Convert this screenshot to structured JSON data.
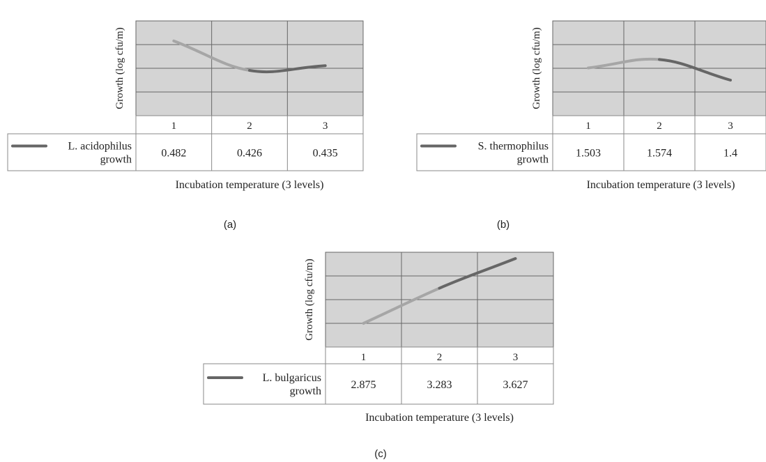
{
  "colors": {
    "plot_bg": "#d4d4d4",
    "grid": "#666666",
    "line_light": "#a6a6a6",
    "line_dark": "#666666",
    "cell_border": "#888888",
    "text": "#222222"
  },
  "chart_data": [
    {
      "type": "line",
      "panel_label": "(a)",
      "ylabel": "Growth (log cfu/m)",
      "xlabel": "Incubation temperature (3 levels)",
      "categories": [
        "1",
        "2",
        "3"
      ],
      "series": [
        {
          "name_line1": "L. acidophilus",
          "name_line2": "growth",
          "values": [
            0.482,
            0.426,
            0.435
          ]
        }
      ],
      "value_labels": [
        "0.482",
        "0.426",
        "0.435"
      ],
      "ylim": [
        0.34,
        0.52
      ],
      "grid": true,
      "legend": "data-table"
    },
    {
      "type": "line",
      "panel_label": "(b)",
      "ylabel": "Growth (log cfu/m)",
      "xlabel": "Incubation temperature (3 levels)",
      "categories": [
        "1",
        "2",
        "3"
      ],
      "series": [
        {
          "name_line1": "S. thermophilus",
          "name_line2": "growth",
          "values": [
            1.503,
            1.574,
            1.4
          ]
        }
      ],
      "value_labels": [
        "1.503",
        "1.574",
        "1.4"
      ],
      "ylim": [
        1.1,
        1.9
      ],
      "grid": true,
      "legend": "data-table"
    },
    {
      "type": "line",
      "panel_label": "(c)",
      "ylabel": "Growth (log cfu/m)",
      "xlabel": "Incubation temperature (3 levels)",
      "categories": [
        "1",
        "2",
        "3"
      ],
      "series": [
        {
          "name_line1": "L. bulgaricus",
          "name_line2": "growth",
          "values": [
            2.875,
            3.283,
            3.627
          ]
        }
      ],
      "value_labels": [
        "2.875",
        "3.283",
        "3.627"
      ],
      "ylim": [
        2.6,
        3.7
      ],
      "grid": true,
      "legend": "data-table"
    }
  ]
}
